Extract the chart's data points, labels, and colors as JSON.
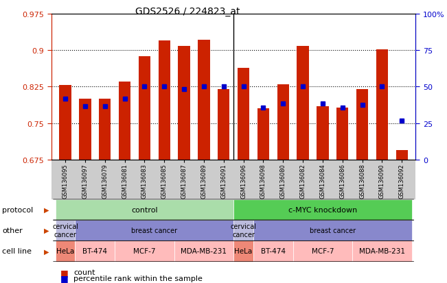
{
  "title": "GDS2526 / 224823_at",
  "samples": [
    "GSM136095",
    "GSM136097",
    "GSM136079",
    "GSM136081",
    "GSM136083",
    "GSM136085",
    "GSM136087",
    "GSM136089",
    "GSM136091",
    "GSM136096",
    "GSM136098",
    "GSM136080",
    "GSM136082",
    "GSM136084",
    "GSM136086",
    "GSM136088",
    "GSM136090",
    "GSM136092"
  ],
  "count_values": [
    0.828,
    0.8,
    0.8,
    0.835,
    0.888,
    0.92,
    0.908,
    0.921,
    0.82,
    0.863,
    0.78,
    0.83,
    0.908,
    0.785,
    0.782,
    0.82,
    0.902,
    0.695
  ],
  "percentile_values": [
    0.8,
    0.785,
    0.785,
    0.8,
    0.825,
    0.825,
    0.82,
    0.825,
    0.825,
    0.825,
    0.782,
    0.79,
    0.825,
    0.79,
    0.782,
    0.788,
    0.825,
    0.755
  ],
  "ymin": 0.675,
  "ymax": 0.975,
  "yticks": [
    0.675,
    0.75,
    0.825,
    0.9,
    0.975
  ],
  "right_yticks": [
    0,
    25,
    50,
    75,
    100
  ],
  "bar_color": "#cc2200",
  "pct_color": "#0000cc",
  "protocol_labels": [
    "control",
    "c-MYC knockdown"
  ],
  "protocol_bar_ranges": [
    [
      0,
      9
    ],
    [
      9,
      18
    ]
  ],
  "protocol_color_light": "#aaddaa",
  "protocol_color_dark": "#55cc55",
  "other_labels": [
    "cervical\ncancer",
    "breast cancer",
    "cervical\ncancer",
    "breast cancer"
  ],
  "other_bar_ranges": [
    [
      0,
      1
    ],
    [
      1,
      9
    ],
    [
      9,
      10
    ],
    [
      10,
      18
    ]
  ],
  "other_bgcolor_cervical": "#bbbbdd",
  "other_bgcolor_breast": "#8888cc",
  "cell_line_labels": [
    "HeLa",
    "BT-474",
    "MCF-7",
    "MDA-MB-231",
    "HeLa",
    "BT-474",
    "MCF-7",
    "MDA-MB-231"
  ],
  "cell_line_bar_ranges": [
    [
      0,
      1
    ],
    [
      1,
      3
    ],
    [
      3,
      6
    ],
    [
      6,
      9
    ],
    [
      9,
      10
    ],
    [
      10,
      12
    ],
    [
      12,
      15
    ],
    [
      15,
      18
    ]
  ],
  "cell_line_colors_hela": "#ee8877",
  "cell_line_colors_other": "#ffbbbb",
  "n_bars": 18,
  "bar_width": 0.6,
  "bg_color": "#ffffff",
  "tick_color_left": "#cc2200",
  "tick_color_right": "#0000cc",
  "separator_bar": 9,
  "xtick_bg_color": "#cccccc",
  "row_label_color": "#000000",
  "arrow_color": "#cc4400"
}
